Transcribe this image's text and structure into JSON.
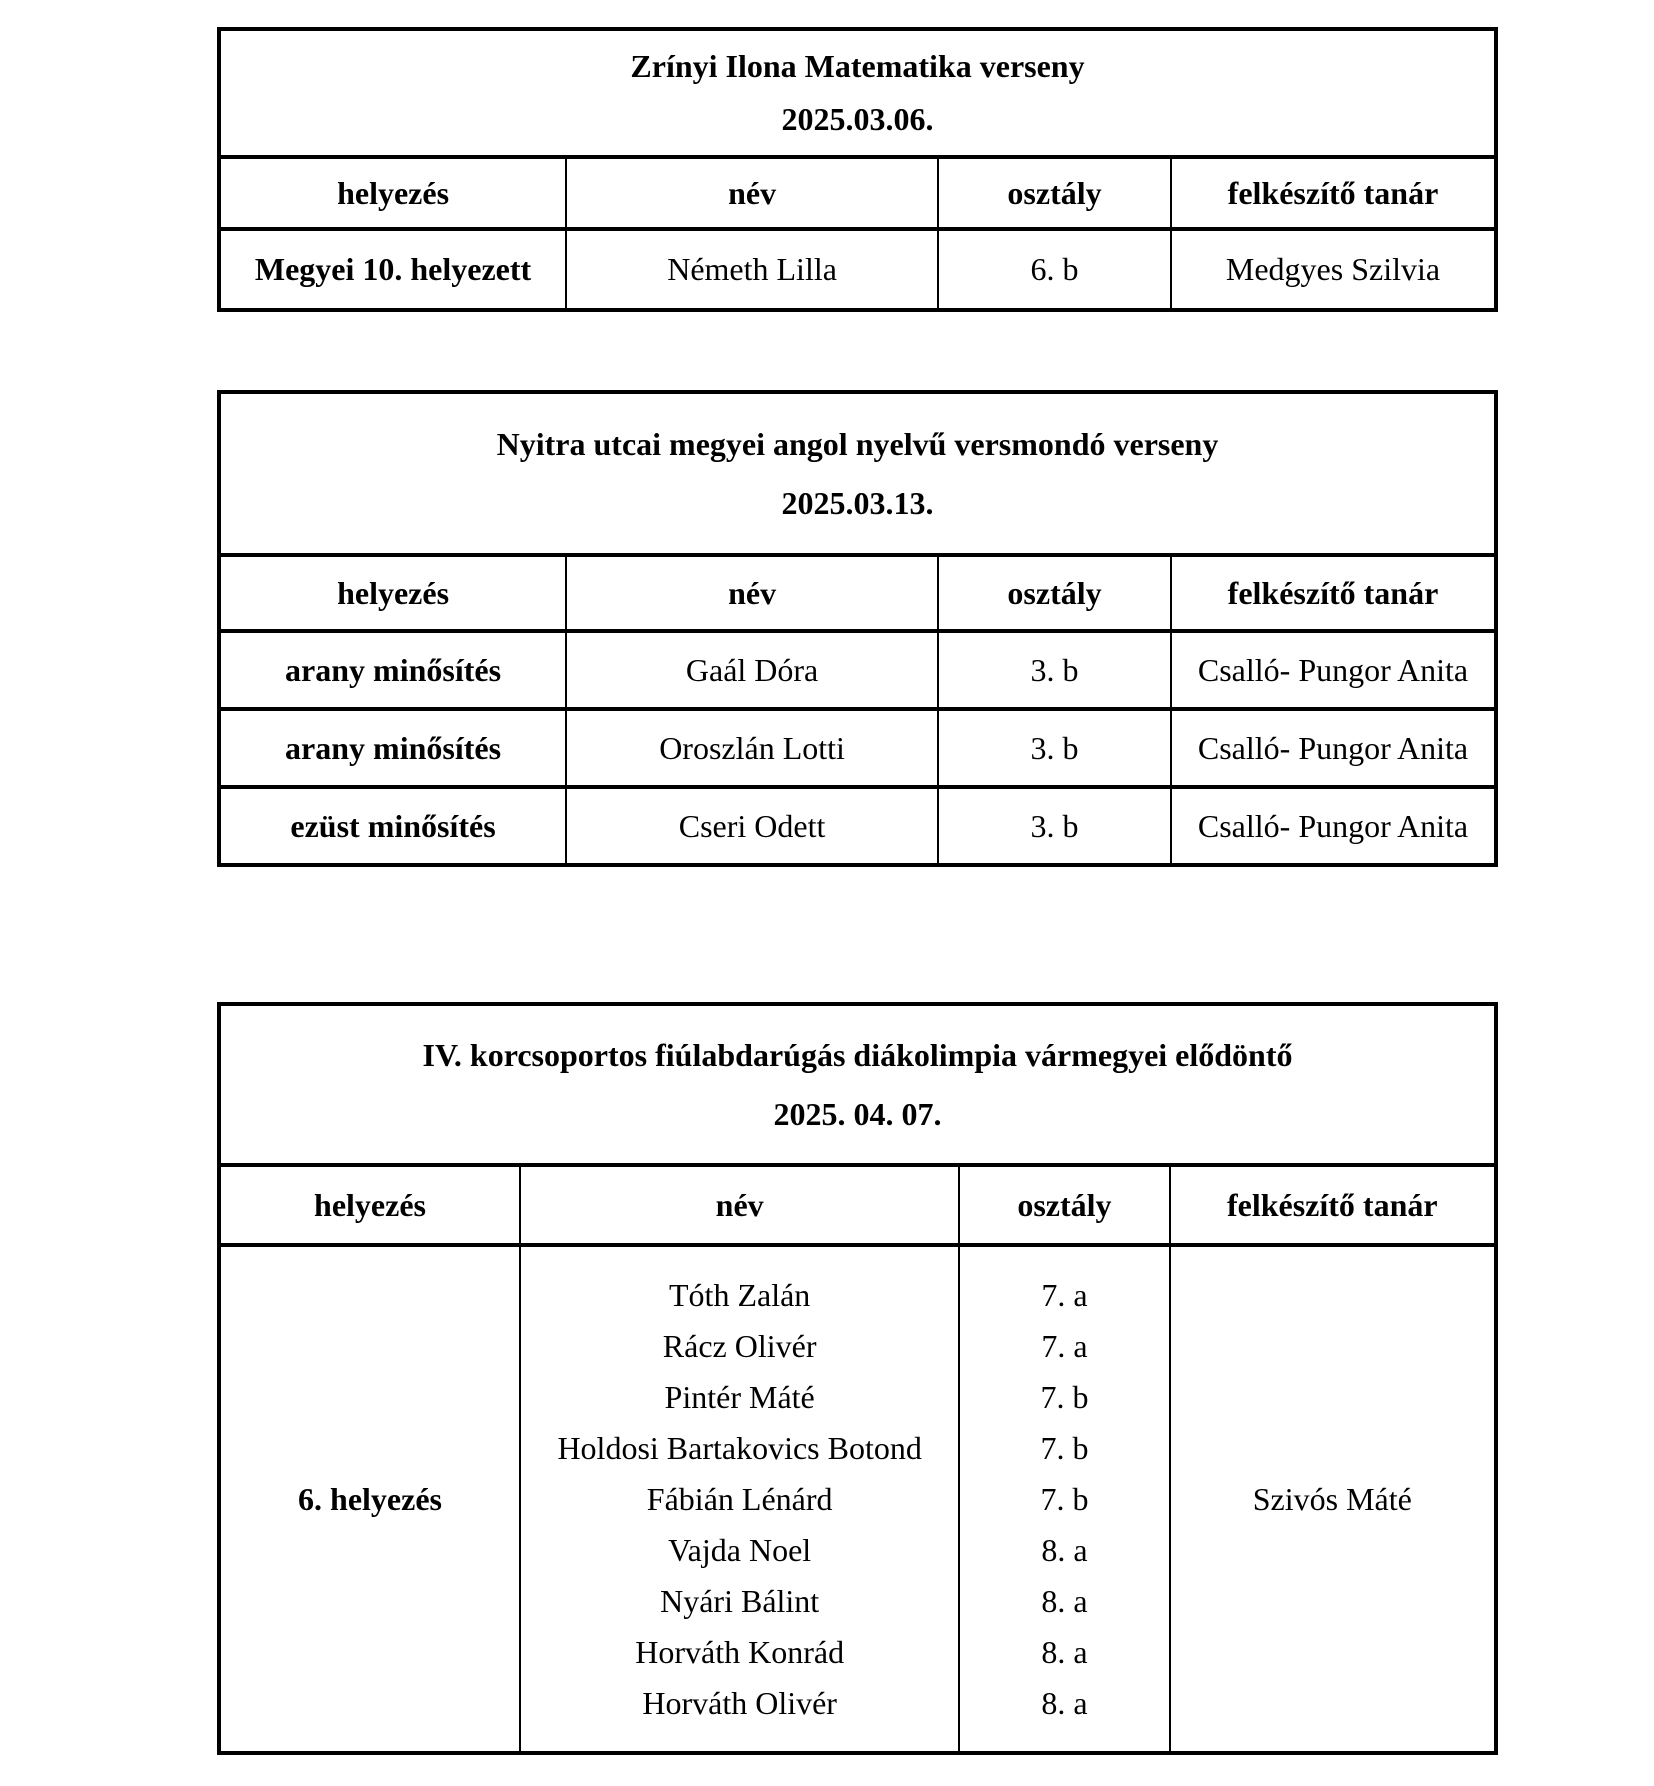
{
  "page": {
    "background_color": "#ffffff",
    "text_color": "#000000",
    "border_color": "#000000"
  },
  "tables": [
    {
      "title": "Zrínyi Ilona Matematika verseny",
      "date": "2025.03.06.",
      "headers": [
        "helyezés",
        "név",
        "osztály",
        "felkészítő tanár"
      ],
      "rows": [
        {
          "placement": "Megyei 10. helyezett",
          "name": "Németh Lilla",
          "class": "6. b",
          "teacher": "Medgyes Szilvia"
        }
      ]
    },
    {
      "title": "Nyitra utcai megyei angol nyelvű versmondó verseny",
      "date": "2025.03.13.",
      "headers": [
        "helyezés",
        "név",
        "osztály",
        "felkészítő tanár"
      ],
      "rows": [
        {
          "placement": "arany minősítés",
          "name": "Gaál Dóra",
          "class": "3. b",
          "teacher": "Csalló- Pungor Anita"
        },
        {
          "placement": "arany minősítés",
          "name": "Oroszlán Lotti",
          "class": "3. b",
          "teacher": "Csalló- Pungor Anita"
        },
        {
          "placement": "ezüst minősítés",
          "name": "Cseri Odett",
          "class": "3. b",
          "teacher": "Csalló- Pungor Anita"
        }
      ]
    },
    {
      "title": "IV. korcsoportos fiúlabdarúgás diákolimpia vármegyei elődöntő",
      "date": "2025. 04. 07.",
      "headers": [
        "helyezés",
        "név",
        "osztály",
        "felkészítő tanár"
      ],
      "group_row": {
        "placement": "6. helyezés",
        "teacher": "Szivós Máté",
        "members": [
          {
            "name": "Tóth Zalán",
            "class": "7. a"
          },
          {
            "name": "Rácz Olivér",
            "class": "7. a"
          },
          {
            "name": "Pintér Máté",
            "class": "7. b"
          },
          {
            "name": "Holdosi Bartakovics Botond",
            "class": "7. b"
          },
          {
            "name": "Fábián Lénárd",
            "class": "7. b"
          },
          {
            "name": "Vajda Noel",
            "class": "8. a"
          },
          {
            "name": "Nyári Bálint",
            "class": "8. a"
          },
          {
            "name": "Horváth Konrád",
            "class": "8. a"
          },
          {
            "name": "Horváth Olivér",
            "class": "8. a"
          }
        ]
      }
    }
  ]
}
